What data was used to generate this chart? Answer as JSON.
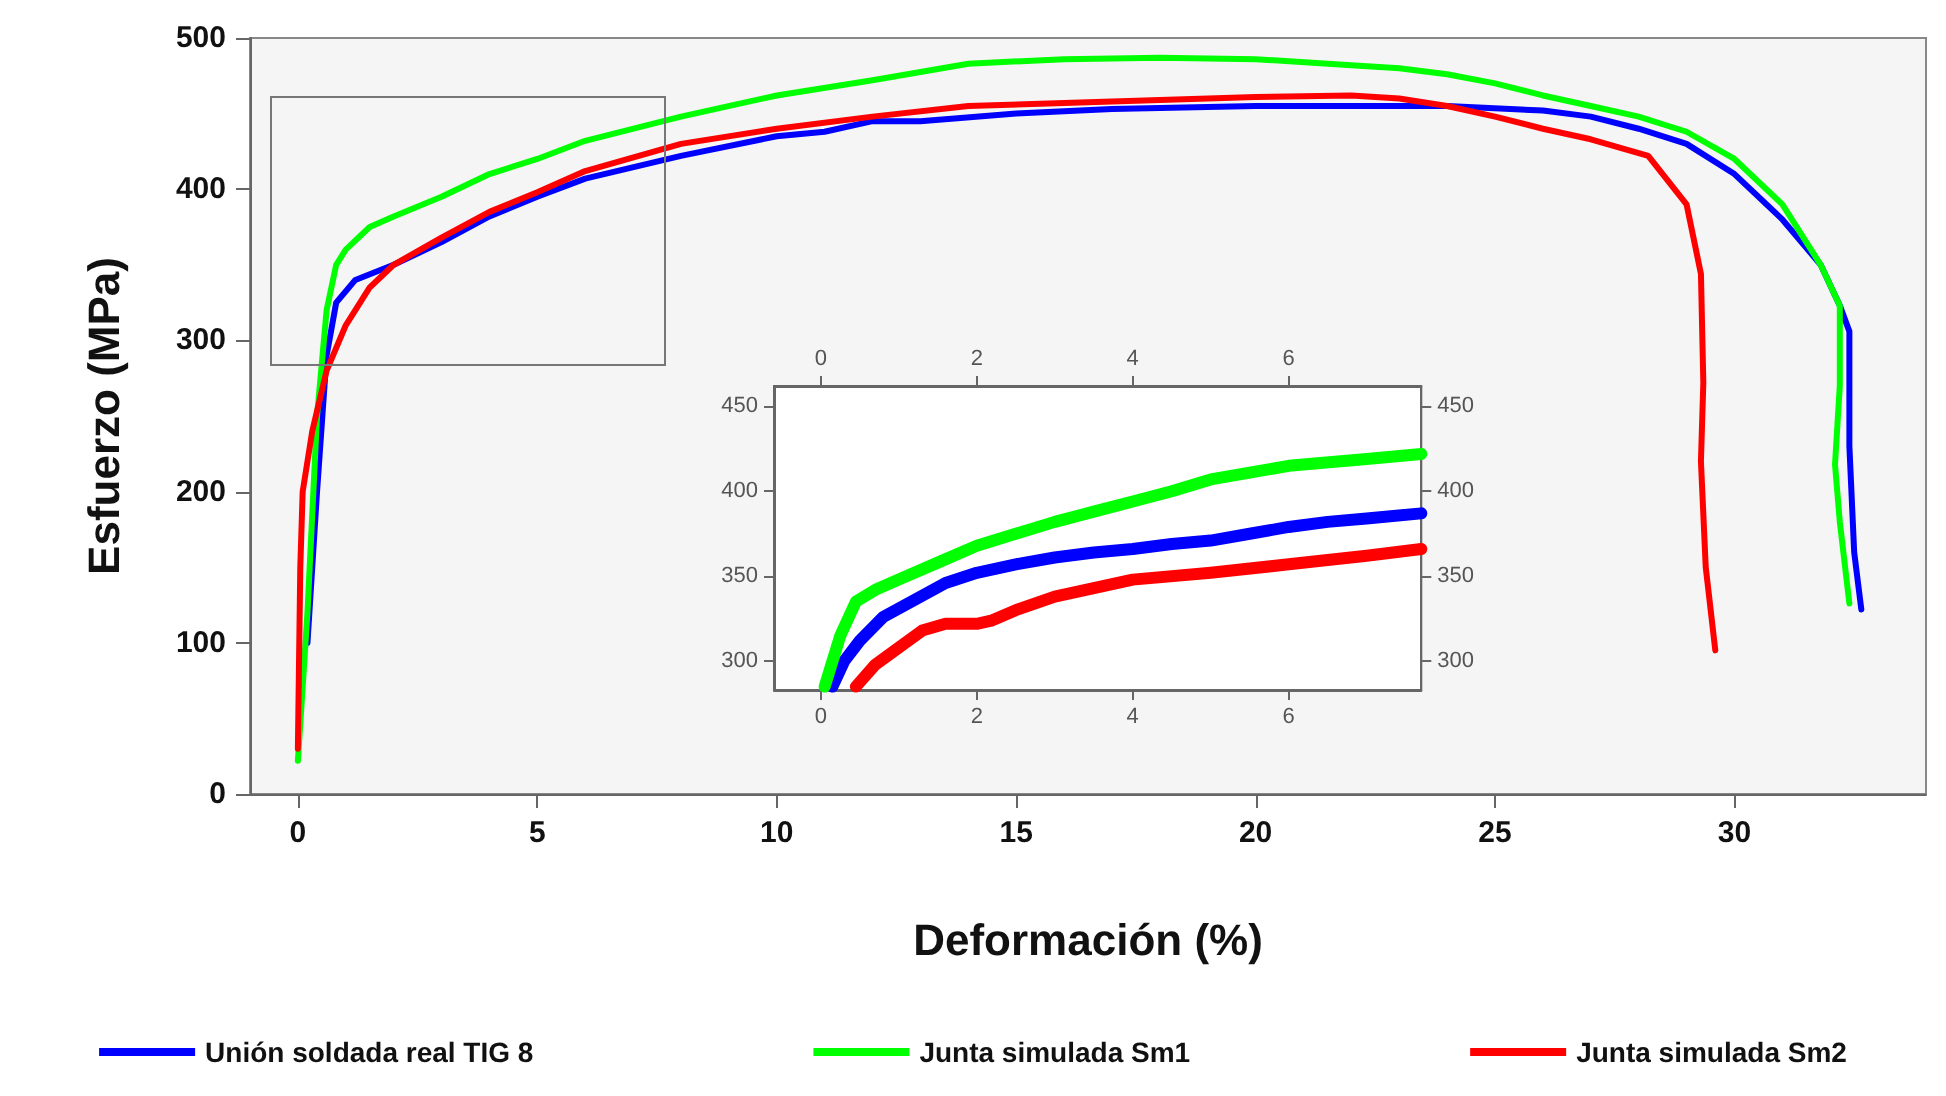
{
  "chart_data": [
    {
      "type": "line",
      "xlabel": "Deformación (%)",
      "ylabel": "Esfuerzo (MPa)",
      "xlim": [
        -1,
        34
      ],
      "ylim": [
        0,
        500
      ],
      "xticks": [
        0,
        5,
        10,
        15,
        20,
        25,
        30
      ],
      "yticks": [
        0,
        100,
        200,
        300,
        400,
        500
      ],
      "grid": false,
      "legend": "bottom",
      "series": [
        {
          "name": "Unión soldada real TIG 8",
          "color": "#0000ff",
          "x": [
            0.2,
            0.4,
            0.6,
            0.8,
            1.2,
            2,
            3,
            4,
            5,
            6,
            8,
            10,
            11,
            12,
            13,
            15,
            17,
            20,
            22,
            24,
            26,
            27,
            28,
            29,
            30,
            31,
            31.8,
            32.2,
            32.4,
            32.4,
            32.5,
            32.65
          ],
          "values": [
            100,
            200,
            290,
            325,
            340,
            350,
            365,
            382,
            395,
            407,
            422,
            435,
            438,
            445,
            445,
            450,
            453,
            455,
            455,
            455,
            452,
            448,
            440,
            430,
            410,
            380,
            350,
            323,
            306,
            230,
            160,
            122
          ]
        },
        {
          "name": "Junta simulada Sm1",
          "color": "#00ff00",
          "x": [
            0,
            0.2,
            0.4,
            0.6,
            0.8,
            1,
            1.5,
            2,
            3,
            4,
            5,
            6,
            8,
            10,
            12,
            14,
            16,
            18,
            20,
            22,
            23,
            24,
            25,
            26,
            27,
            28,
            29,
            30,
            31,
            31.8,
            32.2,
            32.2,
            32.1,
            32.2,
            32.4
          ],
          "values": [
            22,
            120,
            250,
            320,
            350,
            360,
            375,
            382,
            395,
            410,
            420,
            432,
            448,
            462,
            472,
            483,
            486,
            487,
            486,
            482,
            480,
            476,
            470,
            462,
            455,
            448,
            438,
            420,
            390,
            350,
            323,
            270,
            218,
            180,
            126
          ]
        },
        {
          "name": "Junta simulada Sm2",
          "color": "#ff0000",
          "x": [
            0,
            0.05,
            0.1,
            0.3,
            0.6,
            1,
            1.5,
            2,
            3,
            4,
            5,
            6,
            8,
            10,
            12,
            14,
            16,
            18,
            20,
            22,
            23,
            24,
            25,
            26,
            27,
            28.2,
            29,
            29.3,
            29.35,
            29.3,
            29.4,
            29.6
          ],
          "values": [
            30,
            150,
            200,
            240,
            280,
            310,
            335,
            350,
            368,
            385,
            398,
            412,
            430,
            440,
            448,
            455,
            457,
            459,
            461,
            462,
            460,
            455,
            448,
            440,
            433,
            422,
            390,
            344,
            272,
            220,
            150,
            95
          ]
        }
      ]
    },
    {
      "type": "line",
      "xlim": [
        -0.6,
        7.7
      ],
      "ylim": [
        283,
        462
      ],
      "xticks": [
        0,
        2,
        4,
        6
      ],
      "yticks": [
        300,
        350,
        400,
        450
      ],
      "x2lim": [
        -0.6,
        7.7
      ],
      "x2ticks": [
        0,
        2,
        4,
        6
      ],
      "y2lim": [
        283,
        462
      ],
      "y2ticks": [
        300,
        350,
        400,
        450
      ],
      "grid": false,
      "series": [
        {
          "color": "#0000ff",
          "x": [
            0.15,
            0.3,
            0.5,
            0.8,
            1.2,
            1.6,
            2,
            2.5,
            3,
            3.5,
            4,
            4.5,
            5,
            5.5,
            6,
            6.5,
            7,
            7.7
          ],
          "values": [
            285,
            300,
            312,
            326,
            336,
            346,
            352,
            357,
            361,
            364,
            366,
            369,
            371,
            375,
            379,
            382,
            384,
            387
          ]
        },
        {
          "color": "#00ff00",
          "x": [
            0.05,
            0.15,
            0.25,
            0.45,
            0.7,
            1,
            1.5,
            2,
            2.5,
            3,
            3.5,
            4,
            4.5,
            5,
            5.5,
            6,
            7,
            7.7
          ],
          "values": [
            285,
            300,
            315,
            335,
            342,
            348,
            358,
            368,
            375,
            382,
            388,
            394,
            400,
            407,
            411,
            415,
            419,
            422
          ]
        },
        {
          "color": "#ff0000",
          "x": [
            0.45,
            0.7,
            1,
            1.3,
            1.6,
            2,
            2.2,
            2.5,
            3,
            3.5,
            4,
            5,
            6,
            7,
            7.7
          ],
          "values": [
            285,
            298,
            308,
            318,
            322,
            322,
            324,
            330,
            338,
            343,
            348,
            352,
            357,
            362,
            366
          ]
        }
      ]
    }
  ]
}
